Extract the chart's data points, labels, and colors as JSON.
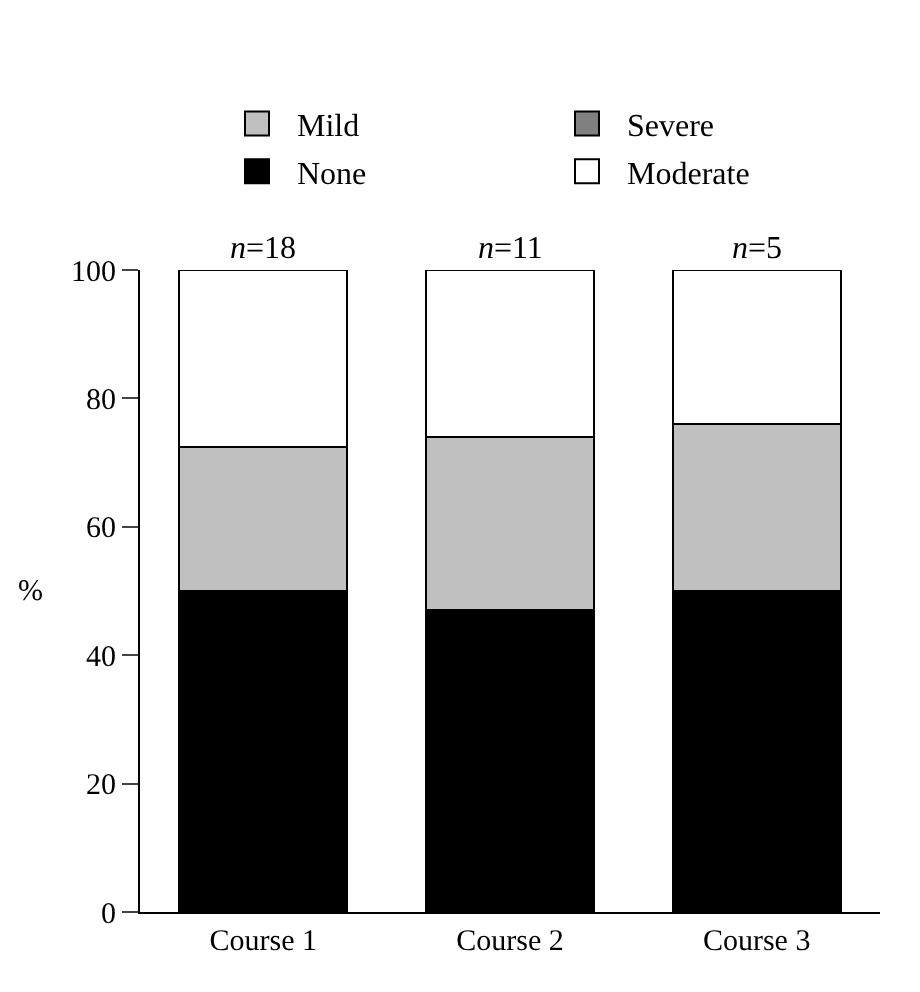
{
  "chart_data": {
    "type": "bar",
    "stacked": true,
    "ylabel": "%",
    "categories": [
      "Course 1",
      "Course 2",
      "Course 3"
    ],
    "series": [
      {
        "name": "None",
        "color": "#000000",
        "values": [
          50,
          47,
          50
        ]
      },
      {
        "name": "Mild",
        "color": "#c0c0c0",
        "values": [
          22.5,
          27,
          26
        ]
      },
      {
        "name": "Severe",
        "color": "#808080",
        "values": [
          0,
          0,
          0
        ]
      },
      {
        "name": "Moderate",
        "color": "#ffffff",
        "values": [
          27.5,
          26,
          24
        ]
      }
    ],
    "ylim": [
      0,
      100
    ],
    "yticks": [
      0,
      20,
      40,
      60,
      80,
      100
    ],
    "grid": false,
    "legend": "top",
    "annotations": [
      {
        "text": "n=18",
        "x": "Course 1",
        "y": 100
      },
      {
        "text": "n=11",
        "x": "Course 2",
        "y": 100
      },
      {
        "text": "n=5",
        "x": "Course 3",
        "y": 100
      }
    ]
  }
}
